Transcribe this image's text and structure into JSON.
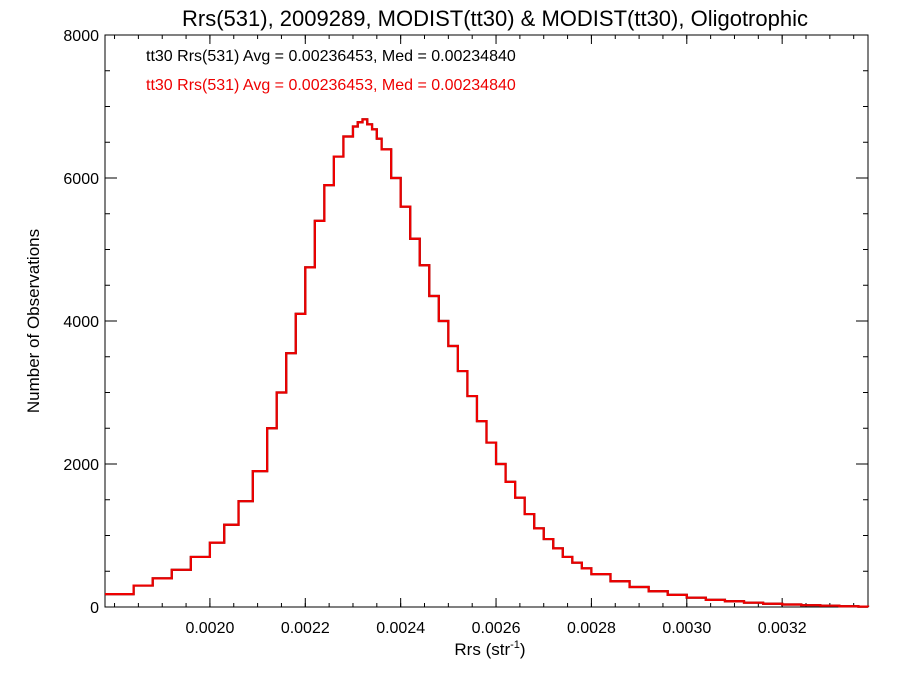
{
  "chart_data": {
    "type": "line",
    "style": "step-histogram",
    "title": "Rrs(531), 2009289, MODIST(tt30) & MODIST(tt30), Oligotrophic",
    "xlabel": "Rrs (str",
    "xlabel_sup": "-1",
    "xlabel_end": ")",
    "ylabel": "Number of Observations",
    "xlim": [
      0.00178,
      0.00338
    ],
    "ylim": [
      0,
      8000
    ],
    "grid": false,
    "x_ticks": [
      0.002,
      0.0022,
      0.0024,
      0.0026,
      0.0028,
      0.003,
      0.0032
    ],
    "x_tick_labels": [
      "0.0020",
      "0.0022",
      "0.0024",
      "0.0026",
      "0.0028",
      "0.0030",
      "0.0032"
    ],
    "y_ticks": [
      0,
      2000,
      4000,
      6000,
      8000
    ],
    "y_tick_labels": [
      "0",
      "2000",
      "4000",
      "6000",
      "8000"
    ],
    "annotations": [
      {
        "text": "tt30 Rrs(531) Avg = 0.00236453, Med = 0.00234840",
        "color": "#000000"
      },
      {
        "text": "tt30 Rrs(531) Avg = 0.00236453, Med = 0.00234840",
        "color": "#ee0000"
      }
    ],
    "series": [
      {
        "color": "#000000",
        "x": [
          0.00178,
          0.00184,
          0.00188,
          0.00192,
          0.00196,
          0.002,
          0.00203,
          0.00206,
          0.00209,
          0.00212,
          0.00214,
          0.00216,
          0.00218,
          0.0022,
          0.00222,
          0.00224,
          0.00226,
          0.00228,
          0.0023,
          0.00231,
          0.00232,
          0.00233,
          0.00234,
          0.00235,
          0.00236,
          0.00238,
          0.0024,
          0.00242,
          0.00244,
          0.00246,
          0.00248,
          0.0025,
          0.00252,
          0.00254,
          0.00256,
          0.00258,
          0.0026,
          0.00262,
          0.00264,
          0.00266,
          0.00268,
          0.0027,
          0.00272,
          0.00274,
          0.00276,
          0.00278,
          0.0028,
          0.00284,
          0.00288,
          0.00292,
          0.00296,
          0.003,
          0.00304,
          0.00308,
          0.00312,
          0.00316,
          0.0032,
          0.00324,
          0.00328,
          0.00332,
          0.00336,
          0.00338
        ],
        "y": [
          180,
          300,
          400,
          520,
          700,
          900,
          1150,
          1480,
          1900,
          2500,
          3000,
          3550,
          4100,
          4750,
          5400,
          5900,
          6300,
          6580,
          6720,
          6780,
          6820,
          6750,
          6680,
          6550,
          6400,
          6000,
          5600,
          5150,
          4780,
          4350,
          4000,
          3650,
          3300,
          2950,
          2600,
          2300,
          2000,
          1750,
          1530,
          1300,
          1100,
          950,
          820,
          700,
          620,
          540,
          460,
          360,
          280,
          220,
          170,
          130,
          100,
          80,
          60,
          45,
          35,
          25,
          18,
          10,
          5,
          2
        ]
      },
      {
        "color": "#ee0000",
        "x": [
          0.00178,
          0.00184,
          0.00188,
          0.00192,
          0.00196,
          0.002,
          0.00203,
          0.00206,
          0.00209,
          0.00212,
          0.00214,
          0.00216,
          0.00218,
          0.0022,
          0.00222,
          0.00224,
          0.00226,
          0.00228,
          0.0023,
          0.00231,
          0.00232,
          0.00233,
          0.00234,
          0.00235,
          0.00236,
          0.00238,
          0.0024,
          0.00242,
          0.00244,
          0.00246,
          0.00248,
          0.0025,
          0.00252,
          0.00254,
          0.00256,
          0.00258,
          0.0026,
          0.00262,
          0.00264,
          0.00266,
          0.00268,
          0.0027,
          0.00272,
          0.00274,
          0.00276,
          0.00278,
          0.0028,
          0.00284,
          0.00288,
          0.00292,
          0.00296,
          0.003,
          0.00304,
          0.00308,
          0.00312,
          0.00316,
          0.0032,
          0.00324,
          0.00328,
          0.00332,
          0.00336,
          0.00338
        ],
        "y": [
          180,
          300,
          400,
          520,
          700,
          900,
          1150,
          1480,
          1900,
          2500,
          3000,
          3550,
          4100,
          4750,
          5400,
          5900,
          6300,
          6580,
          6720,
          6780,
          6820,
          6750,
          6680,
          6550,
          6400,
          6000,
          5600,
          5150,
          4780,
          4350,
          4000,
          3650,
          3300,
          2950,
          2600,
          2300,
          2000,
          1750,
          1530,
          1300,
          1100,
          950,
          820,
          700,
          620,
          540,
          460,
          360,
          280,
          220,
          170,
          130,
          100,
          80,
          60,
          45,
          35,
          25,
          18,
          10,
          5,
          2
        ]
      }
    ]
  }
}
